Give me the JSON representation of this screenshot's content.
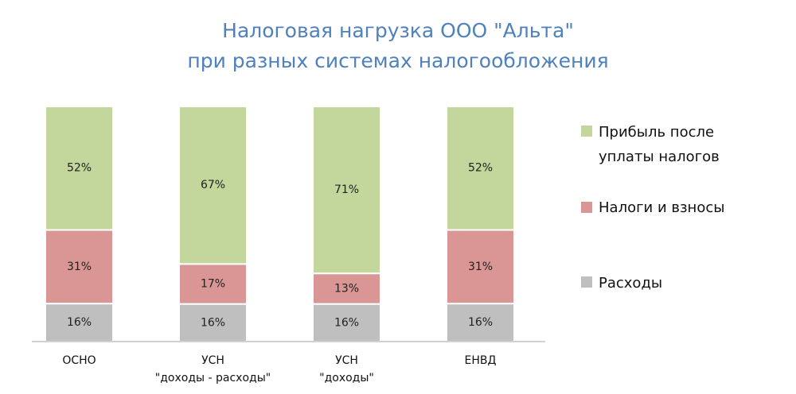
{
  "colors": {
    "title": "#4f81bd",
    "profit": "#c3d69b",
    "taxes": "#d99694",
    "expenses": "#bfbfbf"
  },
  "chart_data": {
    "type": "bar",
    "stacked": true,
    "title": [
      "Налоговая нагрузка ООО \"Альта\"",
      "при разных системах налогообложения"
    ],
    "categories": [
      [
        "ОСНО"
      ],
      [
        "УСН",
        "\"доходы - расходы\""
      ],
      [
        "УСН",
        "\"доходы\""
      ],
      [
        "ЕНВД"
      ]
    ],
    "series": [
      {
        "name": "Расходы",
        "color": "#bfbfbf",
        "values": [
          16,
          16,
          16,
          16
        ]
      },
      {
        "name": "Налоги и взносы",
        "color": "#d99694",
        "values": [
          31,
          17,
          13,
          31
        ]
      },
      {
        "name": "Прибыль после уплаты налогов",
        "color": "#c3d69b",
        "values": [
          52,
          67,
          71,
          52
        ]
      }
    ],
    "value_suffix": "%",
    "legend": {
      "placement": "right",
      "entries": [
        {
          "lines": [
            "Прибыль после",
            "уплаты налогов"
          ],
          "color": "#c3d69b"
        },
        {
          "lines": [
            "Налоги и взносы"
          ],
          "color": "#d99694"
        },
        {
          "lines": [
            "Расходы"
          ],
          "color": "#bfbfbf"
        }
      ]
    },
    "grid": false
  }
}
